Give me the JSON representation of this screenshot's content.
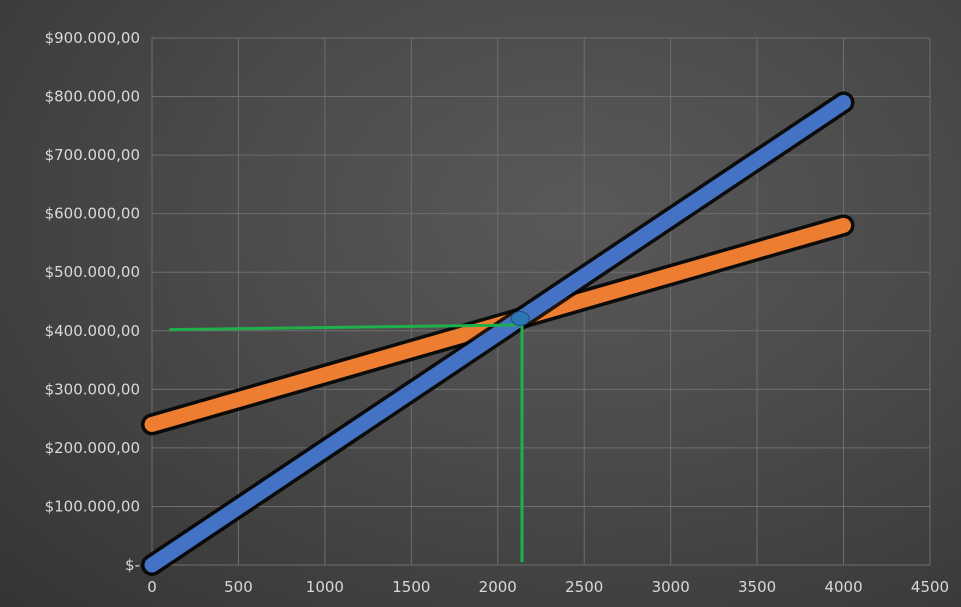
{
  "chart_data": {
    "type": "line",
    "title": "",
    "xlabel": "",
    "ylabel": "",
    "xlim": [
      0,
      4500
    ],
    "ylim": [
      0,
      900000
    ],
    "grid": true,
    "legend": "none",
    "x_ticks": [
      {
        "value": 0,
        "label": "0"
      },
      {
        "value": 500,
        "label": "500"
      },
      {
        "value": 1000,
        "label": "1000"
      },
      {
        "value": 1500,
        "label": "1500"
      },
      {
        "value": 2000,
        "label": "2000"
      },
      {
        "value": 2500,
        "label": "2500"
      },
      {
        "value": 3000,
        "label": "3000"
      },
      {
        "value": 3500,
        "label": "3500"
      },
      {
        "value": 4000,
        "label": "4000"
      },
      {
        "value": 4500,
        "label": "4500"
      }
    ],
    "y_ticks": [
      {
        "value": 0,
        "label": "$-"
      },
      {
        "value": 100000,
        "label": "$100.000,00"
      },
      {
        "value": 200000,
        "label": "$200.000,00"
      },
      {
        "value": 300000,
        "label": "$300.000,00"
      },
      {
        "value": 400000,
        "label": "$400.000,00"
      },
      {
        "value": 500000,
        "label": "$500.000,00"
      },
      {
        "value": 600000,
        "label": "$600.000,00"
      },
      {
        "value": 700000,
        "label": "$700.000,00"
      },
      {
        "value": 800000,
        "label": "$800.000,00"
      },
      {
        "value": 900000,
        "label": "$900.000,00"
      }
    ],
    "series": [
      {
        "color": "#4472c4",
        "x": [
          0,
          4000
        ],
        "y": [
          0,
          790000
        ]
      },
      {
        "color": "#ed7d31",
        "x": [
          0,
          4000
        ],
        "y": [
          240000,
          580000
        ]
      }
    ],
    "intersection": {
      "x": 2130,
      "y": 421000,
      "color": "#2e75b6"
    },
    "annotation_lines": {
      "color": "#1fb04c",
      "horizontal": {
        "x": [
          100,
          2130
        ],
        "y": [
          402000,
          410000
        ]
      },
      "vertical": {
        "x": [
          2140,
          2140
        ],
        "y": [
          410000,
          5000
        ]
      }
    }
  }
}
